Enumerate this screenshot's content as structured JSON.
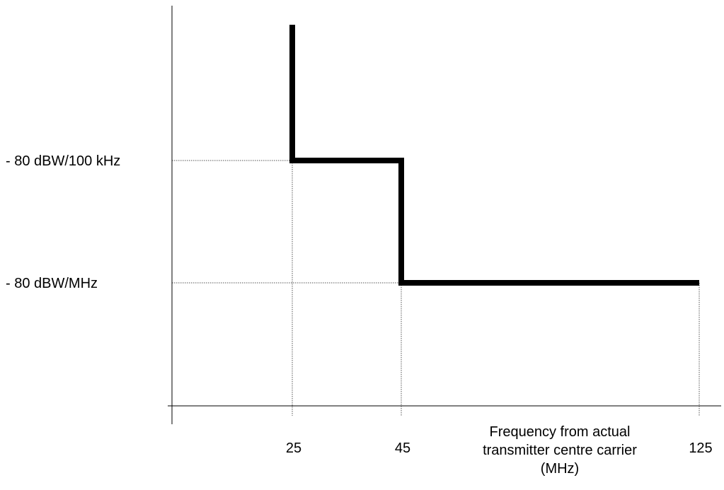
{
  "chart_data": {
    "type": "line",
    "title": "",
    "xlabel": [
      "Frequency from actual",
      "transmitter centre carrier",
      "(MHz)"
    ],
    "ylabel": "",
    "x_ticks": [
      {
        "value": 25,
        "label": "25"
      },
      {
        "value": 45,
        "label": "45"
      },
      {
        "value": 125,
        "label": "125"
      }
    ],
    "y_ticks": [
      {
        "level": "high",
        "label": "- 80 dBW/100 kHz"
      },
      {
        "level": "low",
        "label": "- 80 dBW/MHz"
      }
    ],
    "series": [
      {
        "step_points": [
          {
            "x": 25,
            "y": "top"
          },
          {
            "x": 25,
            "y": "- 80 dBW/100 kHz"
          },
          {
            "x": 45,
            "y": "- 80 dBW/100 kHz"
          },
          {
            "x": 45,
            "y": "- 80 dBW/MHz"
          },
          {
            "x": 125,
            "y": "- 80 dBW/MHz"
          }
        ]
      }
    ],
    "grid": false,
    "guide_lines": "dotted",
    "legend": "none",
    "colors": {
      "line": "#000000",
      "axis": "#000000",
      "guide": "#555555"
    }
  }
}
